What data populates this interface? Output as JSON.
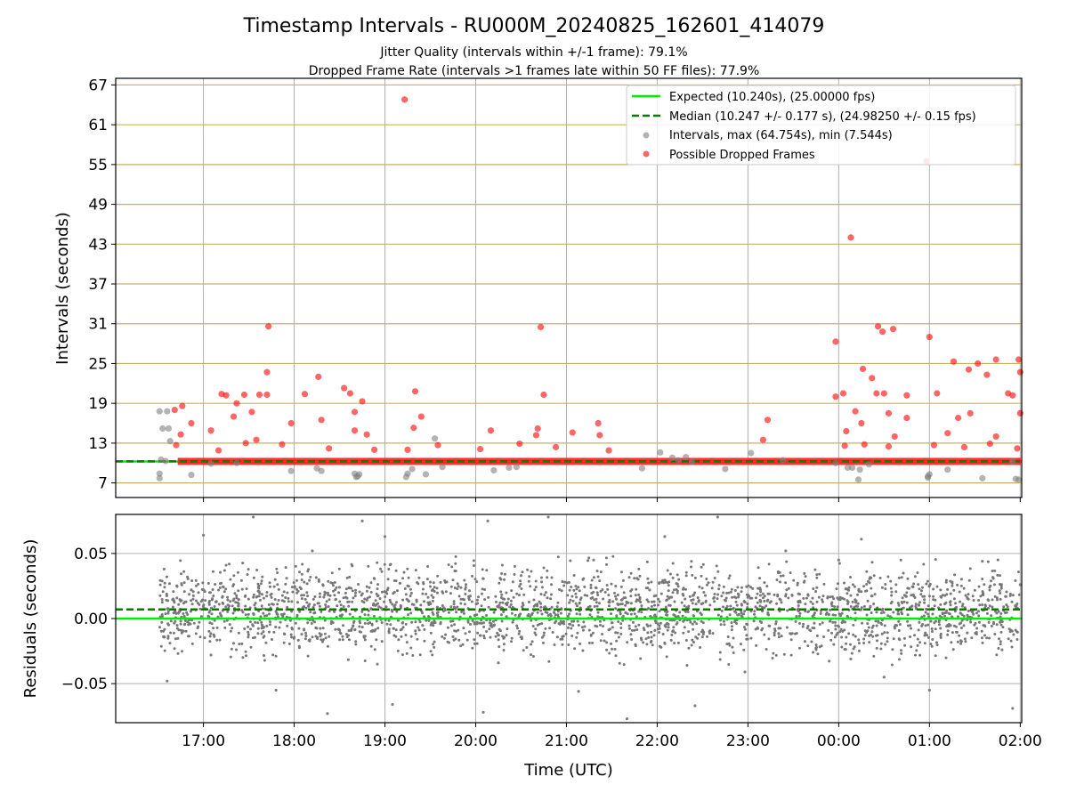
{
  "chart_data": {
    "type": "scatter",
    "title": "Timestamp Intervals - RU000M_20240825_162601_414079",
    "subtitle_1": "Jitter Quality (intervals within +/-1 frame): 79.1%",
    "subtitle_2": "Dropped Frame Rate (intervals >1 frames late within 50 FF files): 77.9%",
    "xlabel": "Time (UTC)",
    "x_ticks": [
      "17:00",
      "18:00",
      "19:00",
      "20:00",
      "21:00",
      "22:00",
      "23:00",
      "00:00",
      "01:00",
      "02:00"
    ],
    "x_range": [
      "16:02",
      "02:01"
    ],
    "grid": true,
    "legend_position": "top-right",
    "top_panel": {
      "ylabel": "Intervals (seconds)",
      "y_ticks": [
        "7",
        "13",
        "19",
        "25",
        "31",
        "37",
        "43",
        "49",
        "55",
        "61",
        "67"
      ],
      "ylim": [
        4.8,
        68.0
      ],
      "expected_interval": 10.24,
      "median_interval": 10.247,
      "legend": [
        "Expected (10.240s), (25.00000 fps)",
        "Median (10.247 +/- 0.177 s), (24.98250 +/- 0.15 fps)",
        "Intervals, max (64.754s), min (7.544s)",
        "Possible Dropped Frames"
      ],
      "series": [
        {
          "name": "Intervals, max (64.754s), min (7.544s)",
          "color": "#808080",
          "points": [
            [
              "16:31",
              17.8
            ],
            [
              "16:33",
              15.2
            ],
            [
              "16:36",
              17.8
            ],
            [
              "16:37",
              15.2
            ],
            [
              "16:38",
              13.3
            ],
            [
              "16:31",
              8.4
            ],
            [
              "16:31",
              7.7
            ],
            [
              "16:32",
              10.5
            ],
            [
              "16:35",
              10.3
            ],
            [
              "16:52",
              8.2
            ],
            [
              "17:05",
              9.9
            ],
            [
              "17:22",
              10.0
            ],
            [
              "17:58",
              8.8
            ],
            [
              "18:15",
              9.2
            ],
            [
              "18:18",
              8.8
            ],
            [
              "18:40",
              8.4
            ],
            [
              "18:41",
              7.9
            ],
            [
              "18:42",
              8.0
            ],
            [
              "18:43",
              8.3
            ],
            [
              "19:14",
              7.9
            ],
            [
              "19:15",
              8.4
            ],
            [
              "19:18",
              9.1
            ],
            [
              "19:27",
              8.3
            ],
            [
              "19:33",
              13.7
            ],
            [
              "19:38",
              9.4
            ],
            [
              "20:12",
              8.9
            ],
            [
              "20:22",
              9.3
            ],
            [
              "20:27",
              9.4
            ],
            [
              "21:50",
              9.2
            ],
            [
              "22:02",
              11.6
            ],
            [
              "22:10",
              10.8
            ],
            [
              "22:14",
              10.4
            ],
            [
              "22:19",
              10.9
            ],
            [
              "22:23",
              10.2
            ],
            [
              "22:45",
              9.1
            ],
            [
              "23:02",
              11.5
            ],
            [
              "23:23",
              10.4
            ],
            [
              "23:58",
              10.0
            ],
            [
              "00:06",
              9.3
            ],
            [
              "00:09",
              9.3
            ],
            [
              "00:13",
              7.5
            ],
            [
              "00:14",
              9.0
            ],
            [
              "00:20",
              9.8
            ],
            [
              "00:59",
              8.0
            ],
            [
              "00:59",
              7.8
            ],
            [
              "01:00",
              8.3
            ],
            [
              "01:12",
              9.0
            ],
            [
              "01:35",
              7.7
            ],
            [
              "01:57",
              7.6
            ],
            [
              "01:59",
              7.5
            ],
            [
              "01:55",
              10.2
            ]
          ]
        },
        {
          "name": "Possible Dropped Frames",
          "color": "#ff0000",
          "points": [
            [
              "19:13",
              64.8
            ],
            [
              "00:58",
              55.5
            ],
            [
              "00:08",
              44.0
            ],
            [
              "17:43",
              30.6
            ],
            [
              "20:43",
              30.5
            ],
            [
              "00:26",
              30.6
            ],
            [
              "00:29",
              29.8
            ],
            [
              "00:36",
              30.2
            ],
            [
              "01:00",
              29.0
            ],
            [
              "23:58",
              28.3
            ],
            [
              "01:44",
              25.6
            ],
            [
              "01:59",
              25.6
            ],
            [
              "01:16",
              25.3
            ],
            [
              "01:32",
              25.0
            ],
            [
              "17:42",
              23.7
            ],
            [
              "18:16",
              23.0
            ],
            [
              "00:16",
              24.2
            ],
            [
              "00:22",
              22.8
            ],
            [
              "01:26",
              24.1
            ],
            [
              "01:38",
              23.3
            ],
            [
              "02:00",
              23.7
            ],
            [
              "17:12",
              20.4
            ],
            [
              "17:15",
              20.2
            ],
            [
              "17:27",
              20.3
            ],
            [
              "17:37",
              20.3
            ],
            [
              "17:42",
              20.3
            ],
            [
              "18:07",
              20.4
            ],
            [
              "18:33",
              21.3
            ],
            [
              "18:37",
              20.5
            ],
            [
              "19:20",
              20.8
            ],
            [
              "20:45",
              20.3
            ],
            [
              "23:58",
              20.0
            ],
            [
              "00:03",
              20.5
            ],
            [
              "00:25",
              20.5
            ],
            [
              "00:30",
              20.5
            ],
            [
              "00:45",
              20.2
            ],
            [
              "01:05",
              20.5
            ],
            [
              "01:52",
              20.5
            ],
            [
              "01:55",
              20.2
            ],
            [
              "16:41",
              18.0
            ],
            [
              "16:46",
              18.6
            ],
            [
              "17:22",
              19.0
            ],
            [
              "17:32",
              17.7
            ],
            [
              "18:45",
              19.3
            ],
            [
              "19:24",
              17.0
            ],
            [
              "00:11",
              17.8
            ],
            [
              "00:33",
              17.5
            ],
            [
              "01:27",
              17.5
            ],
            [
              "02:00",
              17.5
            ],
            [
              "16:52",
              16.0
            ],
            [
              "17:20",
              17.0
            ],
            [
              "17:58",
              16.0
            ],
            [
              "18:18",
              16.5
            ],
            [
              "18:40",
              17.7
            ],
            [
              "20:41",
              15.2
            ],
            [
              "21:21",
              16.0
            ],
            [
              "23:13",
              16.5
            ],
            [
              "00:15",
              16.0
            ],
            [
              "00:45",
              16.8
            ],
            [
              "01:19",
              16.8
            ],
            [
              "16:45",
              14.3
            ],
            [
              "17:05",
              14.9
            ],
            [
              "17:35",
              13.5
            ],
            [
              "18:40",
              14.9
            ],
            [
              "18:48",
              14.3
            ],
            [
              "19:19",
              15.3
            ],
            [
              "20:10",
              14.9
            ],
            [
              "20:40",
              14.2
            ],
            [
              "21:04",
              14.6
            ],
            [
              "21:22",
              14.2
            ],
            [
              "23:10",
              13.5
            ],
            [
              "00:05",
              14.8
            ],
            [
              "00:37",
              14.0
            ],
            [
              "01:12",
              14.5
            ],
            [
              "01:44",
              14.0
            ],
            [
              "16:42",
              12.7
            ],
            [
              "17:10",
              11.9
            ],
            [
              "17:28",
              13.0
            ],
            [
              "17:52",
              12.8
            ],
            [
              "18:23",
              12.2
            ],
            [
              "18:53",
              12.0
            ],
            [
              "19:15",
              12.0
            ],
            [
              "19:35",
              12.7
            ],
            [
              "20:03",
              12.1
            ],
            [
              "20:29",
              12.9
            ],
            [
              "20:53",
              12.4
            ],
            [
              "21:28",
              11.9
            ],
            [
              "00:04",
              12.6
            ],
            [
              "00:17",
              12.8
            ],
            [
              "00:33",
              12.5
            ],
            [
              "01:03",
              12.7
            ],
            [
              "01:23",
              12.4
            ],
            [
              "01:40",
              12.9
            ],
            [
              "01:58",
              12.2
            ]
          ]
        }
      ]
    },
    "bottom_panel": {
      "ylabel": "Residuals (seconds)",
      "y_ticks": [
        "0.05",
        "0.00",
        "−0.05"
      ],
      "ylim": [
        -0.08,
        0.08
      ],
      "expected_residual": 0.0,
      "median_residual": 0.007,
      "series": [
        {
          "name": "Residuals",
          "color": "#808080",
          "points": [
            [
              "16:34",
              0.038
            ],
            [
              "16:36",
              -0.048
            ],
            [
              "16:40",
              0.015
            ],
            [
              "16:45",
              -0.002
            ],
            [
              "16:52",
              0.022
            ],
            [
              "17:00",
              0.064
            ],
            [
              "17:05",
              -0.028
            ],
            [
              "17:15",
              0.041
            ],
            [
              "17:20",
              -0.019
            ],
            [
              "17:33",
              0.078
            ],
            [
              "17:48",
              -0.055
            ],
            [
              "17:55",
              0.031
            ],
            [
              "18:05",
              -0.012
            ],
            [
              "18:12",
              0.052
            ],
            [
              "18:22",
              -0.073
            ],
            [
              "18:30",
              0.024
            ],
            [
              "18:45",
              0.075
            ],
            [
              "18:55",
              -0.035
            ],
            [
              "19:00",
              0.063
            ],
            [
              "19:05",
              -0.066
            ],
            [
              "19:30",
              0.028
            ],
            [
              "19:45",
              -0.014
            ],
            [
              "20:05",
              -0.072
            ],
            [
              "20:08",
              0.075
            ],
            [
              "20:15",
              -0.034
            ],
            [
              "20:30",
              0.033
            ],
            [
              "20:48",
              0.078
            ],
            [
              "21:08",
              -0.056
            ],
            [
              "21:18",
              0.045
            ],
            [
              "21:40",
              -0.077
            ],
            [
              "21:55",
              0.022
            ],
            [
              "22:05",
              0.063
            ],
            [
              "22:25",
              -0.067
            ],
            [
              "22:40",
              0.078
            ],
            [
              "22:58",
              -0.041
            ],
            [
              "23:10",
              0.019
            ],
            [
              "23:25",
              0.052
            ],
            [
              "23:45",
              -0.023
            ],
            [
              "00:00",
              0.045
            ],
            [
              "00:08",
              -0.031
            ],
            [
              "00:15",
              0.061
            ],
            [
              "00:30",
              -0.045
            ],
            [
              "00:48",
              0.018
            ],
            [
              "01:00",
              -0.055
            ],
            [
              "01:15",
              0.028
            ],
            [
              "01:25",
              -0.011
            ],
            [
              "01:35",
              0.044
            ],
            [
              "01:48",
              -0.024
            ],
            [
              "01:55",
              -0.069
            ],
            [
              "02:00",
              0.026
            ]
          ]
        }
      ]
    }
  }
}
